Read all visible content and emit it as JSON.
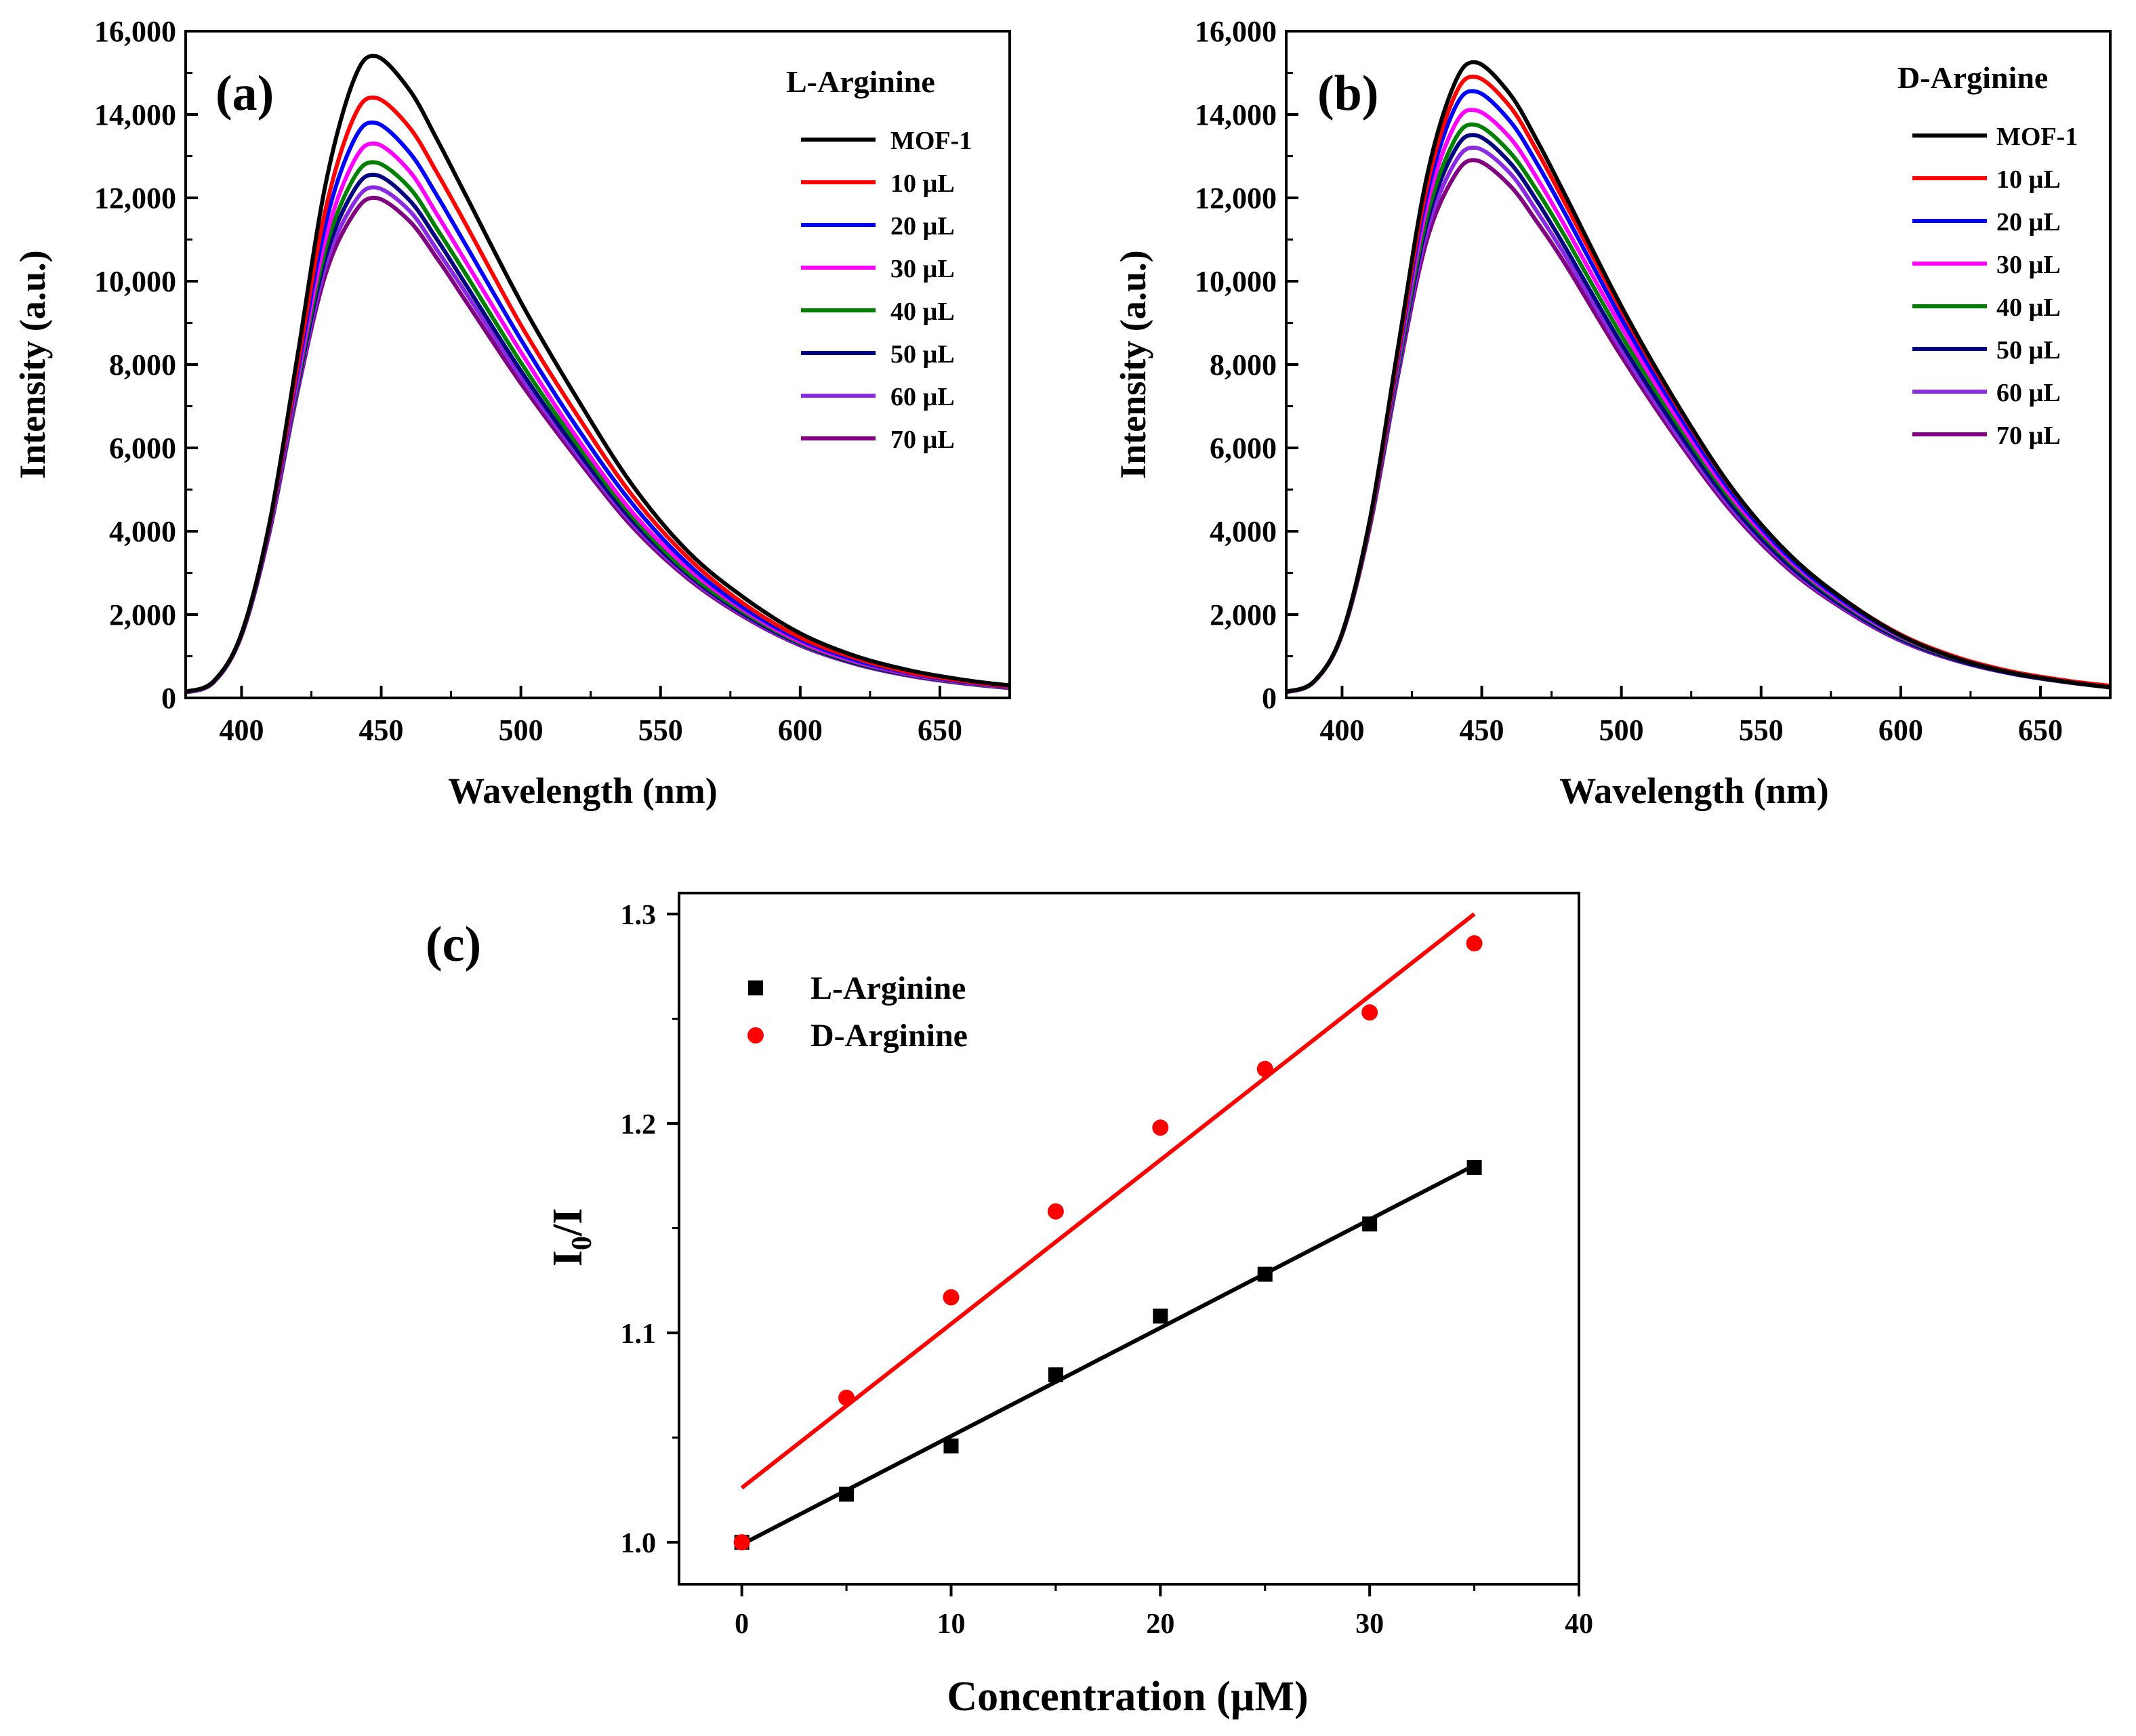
{
  "chart_data": [
    {
      "type": "line",
      "panel_label": "(a)",
      "legend_title": "L-Arginine",
      "xlabel": "Wavelength (nm)",
      "ylabel": "Intensity (a.u.)",
      "xlim": [
        380,
        675
      ],
      "ylim": [
        0,
        16000
      ],
      "xticks": [
        400,
        450,
        500,
        550,
        600,
        650
      ],
      "yticks": [
        0,
        2000,
        4000,
        6000,
        8000,
        10000,
        12000,
        14000,
        16000
      ],
      "ytick_labels": [
        "0",
        "2,000",
        "4,000",
        "6,000",
        "8,000",
        "10,000",
        "12,000",
        "14,000",
        "16,000"
      ],
      "x": [
        380,
        390,
        400,
        410,
        420,
        430,
        440,
        448,
        460,
        470,
        480,
        500,
        520,
        540,
        560,
        580,
        600,
        620,
        640,
        660,
        675
      ],
      "series": [
        {
          "name": "MOF-1",
          "color": "#000000",
          "values": [
            150,
            400,
            1550,
            4200,
            8200,
            12300,
            14800,
            15400,
            14600,
            13400,
            12100,
            9500,
            7200,
            5100,
            3500,
            2400,
            1550,
            1000,
            650,
            420,
            300
          ]
        },
        {
          "name": "10 µL",
          "color": "#ff0000",
          "values": [
            145,
            395,
            1540,
            4150,
            7950,
            11700,
            13900,
            14400,
            13700,
            12600,
            11400,
            8950,
            6800,
            4850,
            3350,
            2250,
            1450,
            950,
            600,
            390,
            280
          ]
        },
        {
          "name": "20 µL",
          "color": "#0000ff",
          "values": [
            140,
            390,
            1530,
            4100,
            7800,
            11350,
            13350,
            13800,
            13100,
            12050,
            10900,
            8600,
            6500,
            4650,
            3200,
            2150,
            1400,
            900,
            580,
            370,
            270
          ]
        },
        {
          "name": "30 µL",
          "color": "#ff00ff",
          "values": [
            140,
            385,
            1520,
            4060,
            7650,
            11000,
            12850,
            13300,
            12650,
            11600,
            10500,
            8300,
            6250,
            4450,
            3100,
            2100,
            1350,
            870,
            560,
            360,
            260
          ]
        },
        {
          "name": "40 µL",
          "color": "#008000",
          "values": [
            135,
            380,
            1510,
            4030,
            7550,
            10750,
            12450,
            12850,
            12250,
            11250,
            10200,
            8050,
            6100,
            4350,
            3000,
            2050,
            1320,
            850,
            550,
            350,
            250
          ]
        },
        {
          "name": "50 µL",
          "color": "#000080",
          "values": [
            135,
            378,
            1505,
            4010,
            7480,
            10550,
            12150,
            12550,
            11950,
            11000,
            9950,
            7850,
            5950,
            4250,
            2950,
            2000,
            1300,
            830,
            540,
            345,
            245
          ]
        },
        {
          "name": "60 µL",
          "color": "#8a2be2",
          "values": [
            130,
            375,
            1500,
            3990,
            7400,
            10350,
            11850,
            12250,
            11700,
            10750,
            9750,
            7700,
            5850,
            4180,
            2900,
            1970,
            1280,
            820,
            530,
            340,
            240
          ]
        },
        {
          "name": "70 µL",
          "color": "#800080",
          "values": [
            130,
            372,
            1495,
            3970,
            7330,
            10150,
            11600,
            12000,
            11450,
            10550,
            9550,
            7550,
            5750,
            4100,
            2850,
            1940,
            1260,
            810,
            520,
            335,
            235
          ]
        }
      ]
    },
    {
      "type": "line",
      "panel_label": "(b)",
      "legend_title": "D-Arginine",
      "xlabel": "Wavelength (nm)",
      "ylabel": "Intensity (a.u.)",
      "xlim": [
        380,
        675
      ],
      "ylim": [
        0,
        16000
      ],
      "xticks": [
        400,
        450,
        500,
        550,
        600,
        650
      ],
      "yticks": [
        0,
        2000,
        4000,
        6000,
        8000,
        10000,
        12000,
        14000,
        16000
      ],
      "ytick_labels": [
        "0",
        "2,000",
        "4,000",
        "6,000",
        "8,000",
        "10,000",
        "12,000",
        "14,000",
        "16,000"
      ],
      "x": [
        380,
        390,
        400,
        410,
        420,
        430,
        440,
        448,
        460,
        470,
        480,
        500,
        520,
        540,
        560,
        580,
        600,
        620,
        640,
        660,
        675
      ],
      "series": [
        {
          "name": "MOF-1",
          "color": "#000000",
          "values": [
            150,
            400,
            1550,
            4300,
            8400,
            12400,
            14700,
            15250,
            14500,
            13350,
            12050,
            9400,
            7050,
            5000,
            3450,
            2350,
            1500,
            950,
            600,
            380,
            250
          ]
        },
        {
          "name": "10 µL",
          "color": "#ff0000",
          "values": [
            148,
            398,
            1545,
            4250,
            8250,
            12150,
            14400,
            14900,
            14200,
            13100,
            11850,
            9300,
            7000,
            4980,
            3450,
            2350,
            1520,
            980,
            630,
            410,
            290
          ]
        },
        {
          "name": "20 µL",
          "color": "#0000ff",
          "values": [
            146,
            396,
            1540,
            4220,
            8150,
            11950,
            14100,
            14550,
            13850,
            12800,
            11600,
            9100,
            6850,
            4880,
            3380,
            2300,
            1490,
            960,
            620,
            400,
            280
          ]
        },
        {
          "name": "30 µL",
          "color": "#ff00ff",
          "values": [
            144,
            394,
            1535,
            4200,
            8050,
            11700,
            13700,
            14100,
            13450,
            12450,
            11300,
            8900,
            6700,
            4780,
            3320,
            2260,
            1470,
            950,
            610,
            395,
            275
          ]
        },
        {
          "name": "40 µL",
          "color": "#008000",
          "values": [
            142,
            392,
            1530,
            4170,
            7950,
            11450,
            13350,
            13750,
            13100,
            12150,
            11050,
            8700,
            6580,
            4700,
            3270,
            2230,
            1450,
            940,
            605,
            390,
            272
          ]
        },
        {
          "name": "50 µL",
          "color": "#000080",
          "values": [
            140,
            390,
            1525,
            4150,
            7880,
            11300,
            13100,
            13500,
            12850,
            11900,
            10800,
            8500,
            6420,
            4580,
            3180,
            2170,
            1410,
            910,
            585,
            375,
            262
          ]
        },
        {
          "name": "60 µL",
          "color": "#8a2be2",
          "values": [
            138,
            388,
            1520,
            4130,
            7800,
            11100,
            12800,
            13200,
            12600,
            11650,
            10600,
            8350,
            6300,
            4500,
            3130,
            2140,
            1390,
            900,
            580,
            372,
            260
          ]
        },
        {
          "name": "70 µL",
          "color": "#800080",
          "values": [
            136,
            386,
            1515,
            4110,
            7720,
            10900,
            12500,
            12900,
            12300,
            11400,
            10400,
            8200,
            6200,
            4430,
            3080,
            2110,
            1370,
            890,
            575,
            370,
            258
          ]
        }
      ]
    },
    {
      "type": "scatter",
      "panel_label": "(c)",
      "xlabel": "Concentration (µM)",
      "ylabel_main": "I",
      "ylabel_sub": "0",
      "ylabel_tail": "/I",
      "xlim": [
        -3,
        40
      ],
      "ylim": [
        0.98,
        1.31
      ],
      "xticks": [
        0,
        10,
        20,
        30,
        40
      ],
      "xtick_labels": [
        "0",
        "10",
        "20",
        "30",
        "40"
      ],
      "yticks": [
        1.0,
        1.1,
        1.2,
        1.3
      ],
      "ytick_labels": [
        "1.0",
        "1.1",
        "1.2",
        "1.3"
      ],
      "x": [
        0,
        5,
        10,
        15,
        20,
        25,
        30,
        35
      ],
      "series": [
        {
          "name": "L-Arginine",
          "color": "#000000",
          "marker": "square",
          "values": [
            1.0,
            1.023,
            1.046,
            1.08,
            1.108,
            1.128,
            1.152,
            1.179
          ],
          "fit": [
            [
              0,
              0.999
            ],
            [
              35,
              1.18
            ]
          ]
        },
        {
          "name": "D-Arginine",
          "color": "#ff0000",
          "marker": "circle",
          "values": [
            1.0,
            1.069,
            1.117,
            1.158,
            1.198,
            1.226,
            1.253,
            1.286
          ],
          "fit": [
            [
              0,
              1.026
            ],
            [
              35,
              1.3
            ]
          ]
        }
      ]
    }
  ]
}
